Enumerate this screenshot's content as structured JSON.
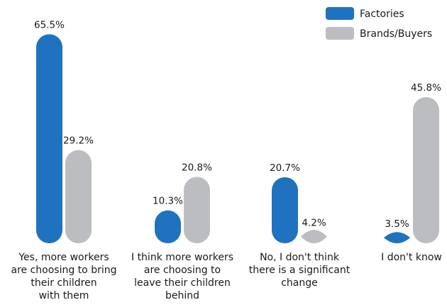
{
  "chart_data": {
    "type": "bar",
    "categories": [
      [
        "Yes, more workers",
        "are choosing to bring",
        "their children",
        "with them"
      ],
      [
        "I think more workers",
        "are choosing to",
        "leave their children",
        "behind"
      ],
      [
        "No, I don't think",
        "there is a significant",
        "change"
      ],
      [
        "I don't know"
      ]
    ],
    "series": [
      {
        "name": "Factories",
        "values": [
          65.5,
          10.3,
          20.7,
          3.5
        ],
        "labels": [
          "65.5%",
          "10.3%",
          "20.7%",
          "3.5%"
        ],
        "color": "#1f72bf"
      },
      {
        "name": "Brands/Buyers",
        "values": [
          29.2,
          20.8,
          4.2,
          45.8
        ],
        "labels": [
          "29.2%",
          "20.8%",
          "4.2%",
          "45.8%"
        ],
        "color": "#bcbdc0"
      }
    ],
    "legend_position": "top-right",
    "grid": false,
    "y_axis_visible": false
  }
}
